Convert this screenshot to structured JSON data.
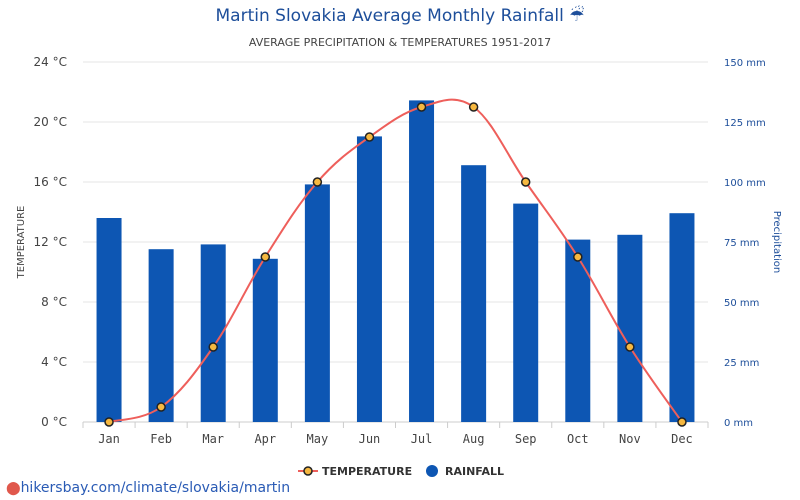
{
  "chart_data": {
    "type": "bar",
    "title": "Martin Slovakia Average Monthly Rainfall ☔",
    "subtitle": "AVERAGE PRECIPITATION & TEMPERATURES 1951-2017",
    "categories": [
      "Jan",
      "Feb",
      "Mar",
      "Apr",
      "May",
      "Jun",
      "Jul",
      "Aug",
      "Sep",
      "Oct",
      "Nov",
      "Dec"
    ],
    "series": [
      {
        "name": "TEMPERATURE",
        "type": "line",
        "axis": "left",
        "unit": "°C",
        "color": "#ee5f5b",
        "marker_fill": "#f6b840",
        "values": [
          0,
          1,
          5,
          11,
          16,
          19,
          21,
          21,
          16,
          11,
          5,
          0
        ]
      },
      {
        "name": "RAINFALL",
        "type": "bar",
        "axis": "right",
        "unit": "mm",
        "color": "#0d56b3",
        "values": [
          85,
          72,
          74,
          68,
          99,
          119,
          134,
          107,
          91,
          76,
          78,
          87
        ]
      }
    ],
    "y_left": {
      "label": "TEMPERATURE",
      "min": 0,
      "max": 24,
      "ticks": [
        "0 °C",
        "4 °C",
        "8 °C",
        "12 °C",
        "16 °C",
        "20 °C",
        "24 °C"
      ]
    },
    "y_right": {
      "label": "Precipitation",
      "min": 0,
      "max": 150,
      "ticks": [
        "0 mm",
        "25 mm",
        "50 mm",
        "75 mm",
        "100 mm",
        "125 mm",
        "150 mm"
      ]
    },
    "grid": true,
    "legend": {
      "position": "bottom",
      "entries": [
        "TEMPERATURE",
        "RAINFALL"
      ]
    }
  },
  "footer": {
    "text": "hikersbay.com/climate/slovakia/martin"
  }
}
